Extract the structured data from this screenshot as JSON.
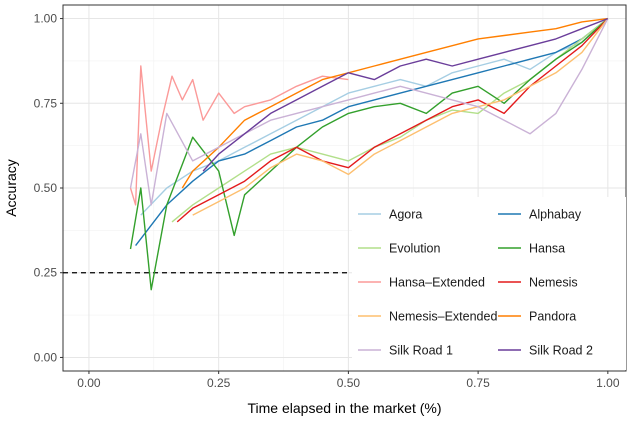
{
  "chart_data": {
    "type": "line",
    "xlabel": "Time elapsed in the market (%)",
    "ylabel": "Accuracy",
    "xlim": [
      -0.05,
      1.035
    ],
    "ylim": [
      -0.04,
      1.04
    ],
    "x_ticks": [
      "0.00",
      "0.25",
      "0.50",
      "0.75",
      "1.00"
    ],
    "y_ticks": [
      "0.00",
      "0.25",
      "0.50",
      "0.75",
      "1.00"
    ],
    "grid": true,
    "legend_position": "bottom-right",
    "legend_columns": 2,
    "reference_line": {
      "y": 0.25,
      "x_range": [
        -0.05,
        0.5
      ],
      "style": "dashed"
    },
    "series": [
      {
        "name": "Agora",
        "color": "#a6cee3",
        "x": [
          0.1,
          0.15,
          0.2,
          0.25,
          0.3,
          0.35,
          0.4,
          0.45,
          0.5,
          0.55,
          0.6,
          0.65,
          0.7,
          0.75,
          0.8,
          0.85,
          0.9,
          0.95,
          1.0
        ],
        "y": [
          0.42,
          0.5,
          0.55,
          0.58,
          0.62,
          0.66,
          0.7,
          0.74,
          0.78,
          0.8,
          0.82,
          0.8,
          0.84,
          0.86,
          0.88,
          0.85,
          0.9,
          0.93,
          1.0
        ]
      },
      {
        "name": "Alphabay",
        "color": "#1f78b4",
        "x": [
          0.09,
          0.15,
          0.2,
          0.25,
          0.3,
          0.35,
          0.4,
          0.45,
          0.5,
          0.55,
          0.6,
          0.65,
          0.7,
          0.75,
          0.8,
          0.85,
          0.9,
          0.95,
          1.0
        ],
        "y": [
          0.33,
          0.45,
          0.52,
          0.58,
          0.6,
          0.64,
          0.68,
          0.7,
          0.74,
          0.76,
          0.78,
          0.8,
          0.82,
          0.84,
          0.86,
          0.88,
          0.9,
          0.94,
          1.0
        ]
      },
      {
        "name": "Evolution",
        "color": "#b2df8a",
        "x": [
          0.16,
          0.2,
          0.25,
          0.3,
          0.35,
          0.4,
          0.45,
          0.5,
          0.55,
          0.6,
          0.65,
          0.7,
          0.75,
          0.8,
          0.85,
          0.9,
          0.95,
          1.0
        ],
        "y": [
          0.4,
          0.45,
          0.5,
          0.55,
          0.6,
          0.62,
          0.6,
          0.58,
          0.62,
          0.65,
          0.7,
          0.73,
          0.72,
          0.78,
          0.82,
          0.88,
          0.94,
          1.0
        ]
      },
      {
        "name": "Hansa",
        "color": "#33a02c",
        "x": [
          0.08,
          0.1,
          0.12,
          0.15,
          0.2,
          0.25,
          0.28,
          0.3,
          0.35,
          0.4,
          0.45,
          0.5,
          0.55,
          0.6,
          0.65,
          0.7,
          0.75,
          0.8,
          0.85,
          0.9,
          0.95,
          1.0
        ],
        "y": [
          0.32,
          0.5,
          0.2,
          0.45,
          0.65,
          0.55,
          0.36,
          0.48,
          0.55,
          0.62,
          0.68,
          0.72,
          0.74,
          0.75,
          0.72,
          0.78,
          0.8,
          0.75,
          0.82,
          0.88,
          0.93,
          1.0
        ]
      },
      {
        "name": "Hansa–Extended",
        "color": "#fb9a99",
        "x": [
          0.08,
          0.09,
          0.1,
          0.12,
          0.14,
          0.16,
          0.18,
          0.2,
          0.22,
          0.25,
          0.28,
          0.3,
          0.35,
          0.4,
          0.45,
          0.5
        ],
        "y": [
          0.5,
          0.45,
          0.86,
          0.55,
          0.7,
          0.83,
          0.76,
          0.82,
          0.7,
          0.78,
          0.72,
          0.74,
          0.76,
          0.8,
          0.83,
          0.82
        ]
      },
      {
        "name": "Nemesis",
        "color": "#e31a1c",
        "x": [
          0.17,
          0.2,
          0.25,
          0.3,
          0.35,
          0.4,
          0.45,
          0.5,
          0.55,
          0.6,
          0.65,
          0.7,
          0.75,
          0.8,
          0.85,
          0.9,
          0.95,
          1.0
        ],
        "y": [
          0.4,
          0.44,
          0.48,
          0.52,
          0.58,
          0.62,
          0.58,
          0.56,
          0.62,
          0.66,
          0.7,
          0.74,
          0.76,
          0.72,
          0.8,
          0.86,
          0.92,
          1.0
        ]
      },
      {
        "name": "Nemesis–Extended",
        "color": "#fdbf6f",
        "x": [
          0.2,
          0.25,
          0.3,
          0.35,
          0.4,
          0.45,
          0.5,
          0.55,
          0.6,
          0.65,
          0.7,
          0.75,
          0.8,
          0.85,
          0.9,
          0.95,
          1.0
        ],
        "y": [
          0.42,
          0.46,
          0.5,
          0.56,
          0.6,
          0.58,
          0.54,
          0.6,
          0.64,
          0.68,
          0.72,
          0.74,
          0.76,
          0.8,
          0.84,
          0.9,
          1.0
        ]
      },
      {
        "name": "Pandora",
        "color": "#ff7f00",
        "x": [
          0.18,
          0.2,
          0.25,
          0.3,
          0.35,
          0.4,
          0.45,
          0.5,
          0.55,
          0.6,
          0.65,
          0.7,
          0.75,
          0.8,
          0.85,
          0.9,
          0.95,
          1.0
        ],
        "y": [
          0.5,
          0.55,
          0.62,
          0.7,
          0.74,
          0.78,
          0.82,
          0.84,
          0.86,
          0.88,
          0.9,
          0.92,
          0.94,
          0.95,
          0.96,
          0.97,
          0.99,
          1.0
        ]
      },
      {
        "name": "Silk Road 1",
        "color": "#cab2d6",
        "x": [
          0.08,
          0.1,
          0.12,
          0.15,
          0.2,
          0.25,
          0.3,
          0.35,
          0.4,
          0.45,
          0.5,
          0.55,
          0.6,
          0.65,
          0.7,
          0.75,
          0.8,
          0.85,
          0.9,
          0.95,
          1.0
        ],
        "y": [
          0.5,
          0.66,
          0.45,
          0.72,
          0.58,
          0.62,
          0.66,
          0.7,
          0.72,
          0.74,
          0.76,
          0.78,
          0.8,
          0.78,
          0.76,
          0.74,
          0.7,
          0.66,
          0.72,
          0.85,
          1.0
        ]
      },
      {
        "name": "Silk Road 2",
        "color": "#6a3d9a",
        "x": [
          0.22,
          0.25,
          0.3,
          0.35,
          0.4,
          0.45,
          0.5,
          0.55,
          0.6,
          0.65,
          0.7,
          0.75,
          0.8,
          0.85,
          0.9,
          0.95,
          1.0
        ],
        "y": [
          0.55,
          0.6,
          0.66,
          0.72,
          0.76,
          0.8,
          0.84,
          0.82,
          0.86,
          0.88,
          0.86,
          0.88,
          0.9,
          0.92,
          0.94,
          0.97,
          1.0
        ]
      }
    ]
  }
}
